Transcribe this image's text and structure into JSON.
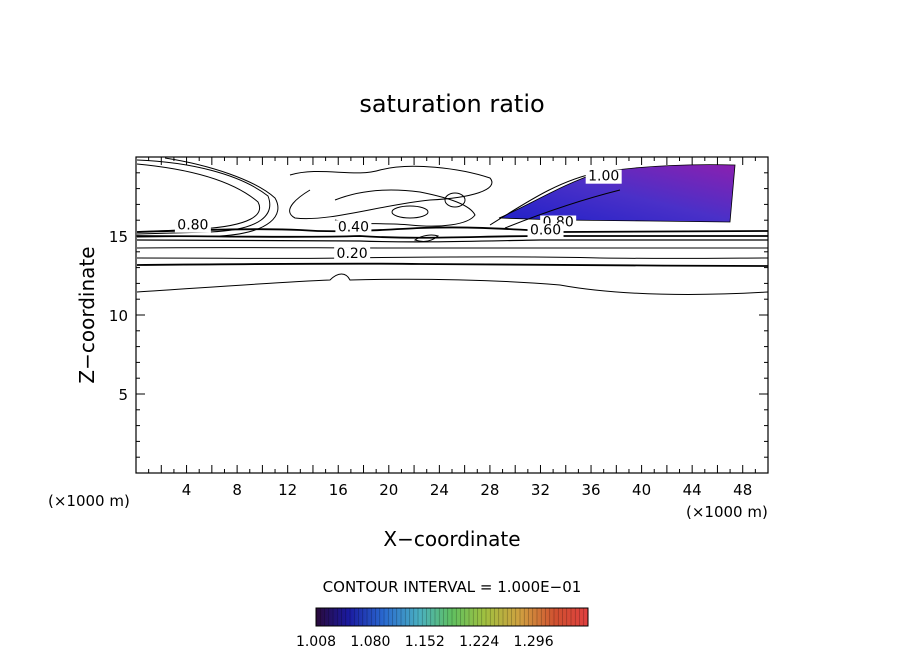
{
  "chart_data": {
    "type": "contour",
    "title": "saturation ratio",
    "xlabel": "X−coordinate",
    "ylabel": "Z−coordinate",
    "x_unit": "(×1000 m)",
    "y_unit": "(×1000 m)",
    "xlim": [
      0,
      50
    ],
    "ylim": [
      0,
      20
    ],
    "x_ticks": [
      4,
      8,
      12,
      16,
      20,
      24,
      28,
      32,
      36,
      40,
      44,
      48
    ],
    "y_ticks": [
      5,
      10,
      15
    ],
    "contour_interval_text": "CONTOUR INTERVAL = 1.000E−01",
    "contour_labels": [
      {
        "text": "0.80",
        "x": 4.5,
        "y": 15.4
      },
      {
        "text": "0.40",
        "x": 17.2,
        "y": 15.3
      },
      {
        "text": "0.20",
        "x": 17.1,
        "y": 13.6
      },
      {
        "text": "1.00",
        "x": 37.0,
        "y": 18.5
      },
      {
        "text": "0.80",
        "x": 33.4,
        "y": 15.6
      },
      {
        "text": "0.60",
        "x": 32.4,
        "y": 15.1
      }
    ],
    "isolines_z": [
      11.2,
      12.1,
      13.0,
      13.3,
      14.5,
      14.8,
      15.0
    ],
    "filled_region": {
      "description_levels": "supersaturated",
      "points": [
        [
          29.0,
          16.0
        ],
        [
          33.0,
          17.2
        ],
        [
          37.0,
          18.6
        ],
        [
          41.0,
          19.2
        ],
        [
          47.0,
          19.4
        ],
        [
          47.0,
          16.1
        ],
        [
          40.0,
          16.0
        ],
        [
          34.0,
          16.1
        ]
      ]
    },
    "colorbar": {
      "labels": [
        "1.008",
        "1.080",
        "1.152",
        "1.224",
        "1.296"
      ],
      "min": 1.008,
      "max": 1.368
    },
    "grid": false
  }
}
